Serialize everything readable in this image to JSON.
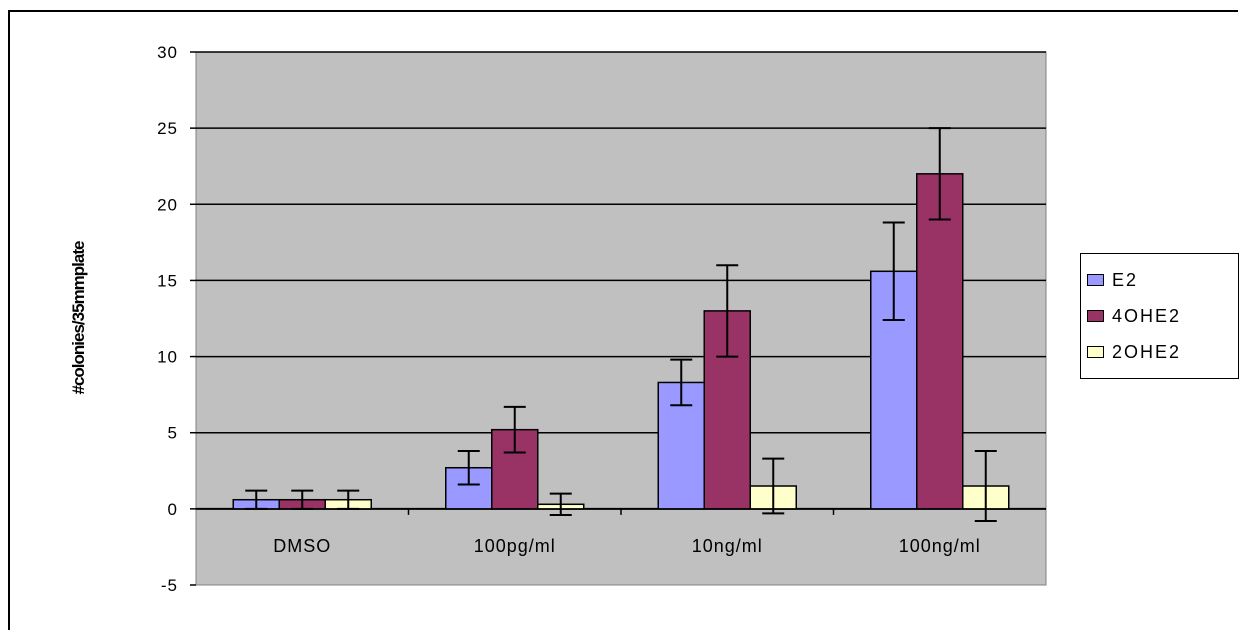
{
  "chart_data": {
    "type": "bar",
    "ylabel": "#colonies/35mmplate",
    "categories": [
      "DMSO",
      "100pg/ml",
      "10ng/ml",
      "100ng/ml"
    ],
    "ylim": [
      -5,
      30
    ],
    "yticks": [
      -5,
      0,
      5,
      10,
      15,
      20,
      25,
      30
    ],
    "grid": true,
    "legend_position": "right",
    "series": [
      {
        "name": "E2",
        "color": "#9999ff",
        "values": [
          0.6,
          2.7,
          8.3,
          15.6
        ],
        "errors": [
          0.6,
          1.1,
          1.5,
          3.2
        ]
      },
      {
        "name": "4OHE2",
        "color": "#993366",
        "values": [
          0.6,
          5.2,
          13.0,
          22.0
        ],
        "errors": [
          0.6,
          1.5,
          3.0,
          3.0
        ]
      },
      {
        "name": "2OHE2",
        "color": "#ffffcc",
        "values": [
          0.6,
          0.3,
          1.5,
          1.5
        ],
        "errors": [
          0.6,
          0.7,
          1.8,
          2.3
        ]
      }
    ]
  }
}
